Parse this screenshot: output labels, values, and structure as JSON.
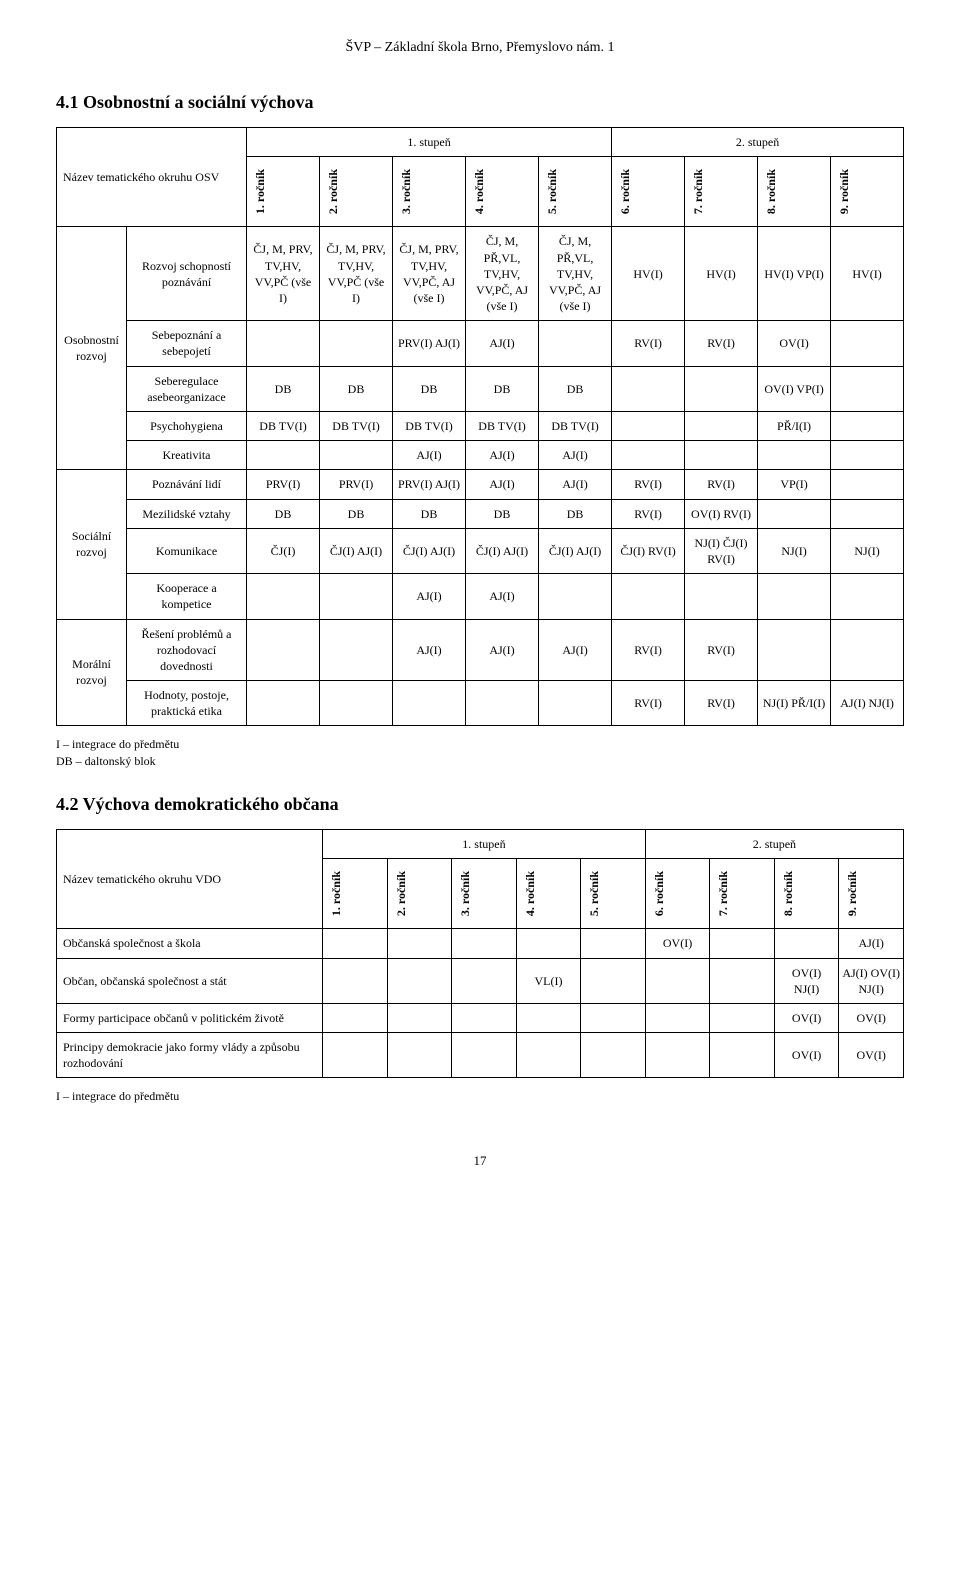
{
  "header_title": "ŠVP – Základní škola Brno, Přemyslovo nám. 1",
  "page_number": "17",
  "footnote_lines": [
    "I – integrace do předmětu",
    "DB – daltonský blok"
  ],
  "footnote2_lines": [
    "I – integrace do předmětu"
  ],
  "section1": {
    "title": "4.1 Osobnostní a sociální výchova",
    "stage1": "1. stupeň",
    "stage2": "2. stupeň",
    "osv_label": "Název tematického okruhu OSV",
    "grades": [
      "1. ročník",
      "2. ročník",
      "3. ročník",
      "4. ročník",
      "5. ročník",
      "6. ročník",
      "7. ročník",
      "8. ročník",
      "9. ročník"
    ],
    "groups": [
      {
        "label": "Osobnostní rozvoj",
        "rows": [
          {
            "name": "Rozvoj schopností poznávání",
            "cells": [
              "ČJ, M, PRV, TV,HV, VV,PČ (vše I)",
              "ČJ, M, PRV, TV,HV, VV,PČ (vše I)",
              "ČJ, M, PRV, TV,HV, VV,PČ, AJ (vše I)",
              "ČJ, M, PŘ,VL, TV,HV, VV,PČ, AJ (vše I)",
              "ČJ, M, PŘ,VL, TV,HV, VV,PČ, AJ (vše I)",
              "HV(I)",
              "HV(I)",
              "HV(I) VP(I)",
              "HV(I)"
            ]
          },
          {
            "name": "Sebepoznání a sebepojetí",
            "cells": [
              "",
              "",
              "PRV(I) AJ(I)",
              "AJ(I)",
              "",
              "RV(I)",
              "RV(I)",
              "OV(I)",
              ""
            ]
          },
          {
            "name": "Seberegulace asebeorganizace",
            "cells": [
              "DB",
              "DB",
              "DB",
              "DB",
              "DB",
              "",
              "",
              "OV(I) VP(I)",
              ""
            ]
          },
          {
            "name": "Psychohygiena",
            "cells": [
              "DB TV(I)",
              "DB TV(I)",
              "DB TV(I)",
              "DB TV(I)",
              "DB TV(I)",
              "",
              "",
              "PŘ/I(I)",
              ""
            ]
          },
          {
            "name": "Kreativita",
            "cells": [
              "",
              "",
              "AJ(I)",
              "AJ(I)",
              "AJ(I)",
              "",
              "",
              "",
              ""
            ]
          }
        ]
      },
      {
        "label": "Sociální rozvoj",
        "rows": [
          {
            "name": "Poznávání lidí",
            "cells": [
              "PRV(I)",
              "PRV(I)",
              "PRV(I) AJ(I)",
              "AJ(I)",
              "AJ(I)",
              "RV(I)",
              "RV(I)",
              "VP(I)",
              ""
            ]
          },
          {
            "name": "Mezilidské vztahy",
            "cells": [
              "DB",
              "DB",
              "DB",
              "DB",
              "DB",
              "RV(I)",
              "OV(I) RV(I)",
              "",
              ""
            ]
          },
          {
            "name": "Komunikace",
            "cells": [
              "ČJ(I)",
              "ČJ(I) AJ(I)",
              "ČJ(I) AJ(I)",
              "ČJ(I) AJ(I)",
              "ČJ(I) AJ(I)",
              "ČJ(I) RV(I)",
              "NJ(I) ČJ(I) RV(I)",
              "NJ(I)",
              "NJ(I)"
            ]
          },
          {
            "name": "Kooperace a kompetice",
            "cells": [
              "",
              "",
              "AJ(I)",
              "AJ(I)",
              "",
              "",
              "",
              "",
              ""
            ]
          }
        ]
      },
      {
        "label": "Morální rozvoj",
        "rows": [
          {
            "name": "Řešení problémů a rozhodovací dovednosti",
            "cells": [
              "",
              "",
              "AJ(I)",
              "AJ(I)",
              "AJ(I)",
              "RV(I)",
              "RV(I)",
              "",
              ""
            ]
          },
          {
            "name": "Hodnoty, postoje, praktická etika",
            "cells": [
              "",
              "",
              "",
              "",
              "",
              "RV(I)",
              "RV(I)",
              "NJ(I) PŘ/I(I)",
              "AJ(I) NJ(I)"
            ]
          }
        ]
      }
    ]
  },
  "section2": {
    "title": "4.2 Výchova demokratického občana",
    "stage1": "1. stupeň",
    "stage2": "2. stupeň",
    "vdo_label": "Název tematického okruhu VDO",
    "grades": [
      "1. ročník",
      "2. ročník",
      "3. ročník",
      "4. ročník",
      "5. ročník",
      "6. ročník",
      "7. ročník",
      "8. ročník",
      "9. ročník"
    ],
    "rows": [
      {
        "name": "Občanská společnost a škola",
        "cells": [
          "",
          "",
          "",
          "",
          "",
          "OV(I)",
          "",
          "",
          "AJ(I)"
        ]
      },
      {
        "name": "Občan, občanská společnost a stát",
        "cells": [
          "",
          "",
          "",
          "VL(I)",
          "",
          "",
          "",
          "OV(I) NJ(I)",
          "AJ(I) OV(I) NJ(I)"
        ]
      },
      {
        "name": "Formy participace občanů v politickém životě",
        "cells": [
          "",
          "",
          "",
          "",
          "",
          "",
          "",
          "OV(I)",
          "OV(I)"
        ]
      },
      {
        "name": "Principy demokracie jako formy vlády a způsobu rozhodování",
        "cells": [
          "",
          "",
          "",
          "",
          "",
          "",
          "",
          "OV(I)",
          "OV(I)"
        ]
      }
    ]
  }
}
